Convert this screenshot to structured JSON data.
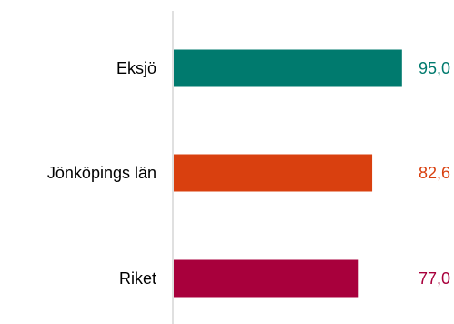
{
  "chart_data": {
    "type": "bar",
    "orientation": "horizontal",
    "categories": [
      "Eksjö",
      "Jönköpings län",
      "Riket"
    ],
    "values": [
      95.0,
      82.6,
      77.0
    ],
    "value_labels": [
      "95,0",
      "82,6",
      "77,0"
    ],
    "colors": [
      "#007a6e",
      "#d9400f",
      "#a8003c"
    ],
    "xlim": [
      0,
      100
    ],
    "grid": false,
    "legend": "none",
    "title": "",
    "xlabel": "",
    "ylabel": ""
  }
}
